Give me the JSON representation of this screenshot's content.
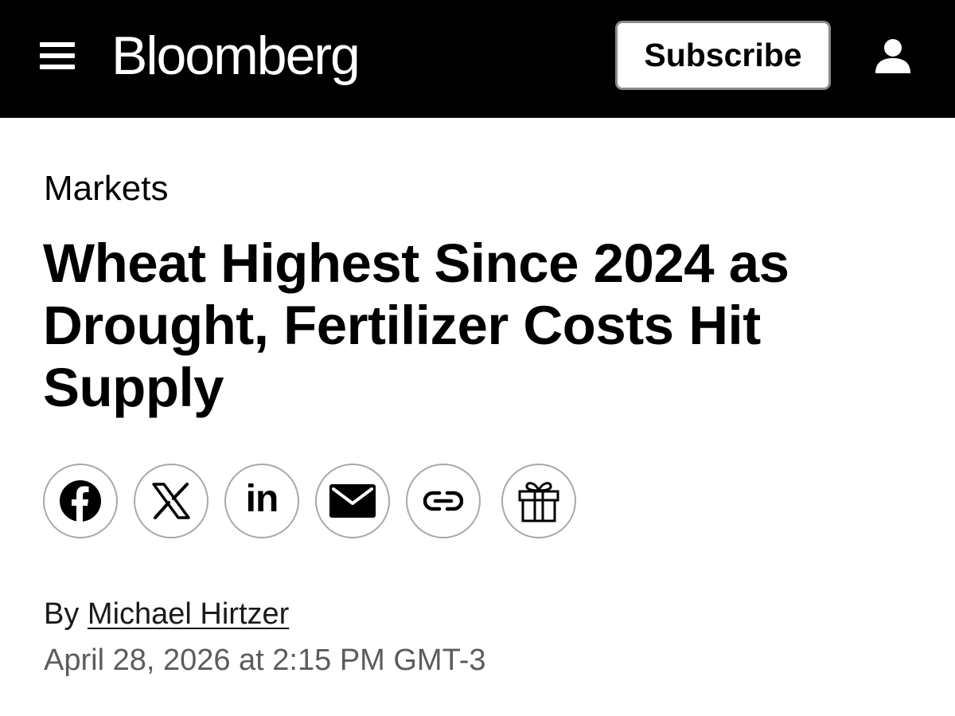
{
  "header": {
    "logo": "Bloomberg",
    "subscribe_label": "Subscribe",
    "menu_icon": "hamburger-menu-icon",
    "user_icon": "user-account-icon"
  },
  "article": {
    "section": "Markets",
    "headline": "Wheat Highest Since 2024 as Drought, Fertilizer Costs Hit Supply",
    "byline_prefix": "By",
    "author": "Michael Hirtzer",
    "timestamp": "April 28, 2026 at 2:15 PM GMT-3"
  },
  "share": {
    "buttons": [
      {
        "name": "facebook",
        "icon": "facebook-icon"
      },
      {
        "name": "x",
        "icon": "x-icon"
      },
      {
        "name": "linkedin",
        "icon": "linkedin-icon",
        "label": "in"
      },
      {
        "name": "email",
        "icon": "email-icon"
      },
      {
        "name": "copy-link",
        "icon": "link-icon"
      },
      {
        "name": "gift",
        "icon": "gift-icon"
      }
    ]
  },
  "colors": {
    "header_bg": "#000000",
    "header_text": "#ffffff",
    "button_border": "#a8a8a8",
    "timestamp": "#5c5c5c"
  }
}
